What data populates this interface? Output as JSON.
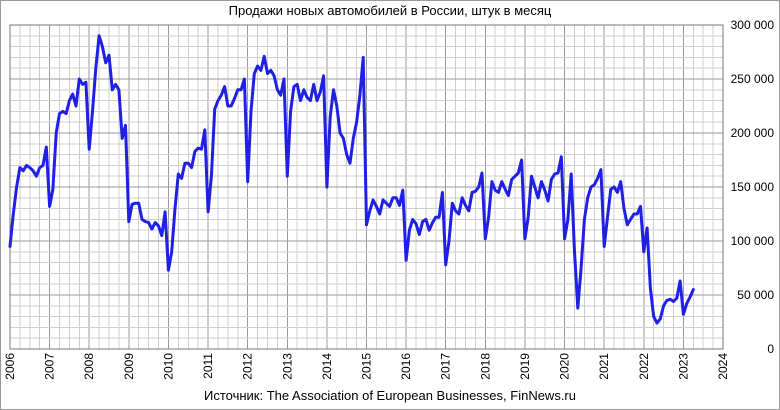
{
  "title": "Продажи новых автомобилей в России, штук в месяц",
  "source": "Источник: The Association of European Businesses, FinNews.ru",
  "colors": {
    "series": "#1f1fe6",
    "grid_minor": "#cfcfcf",
    "grid_major": "#9a9a9a",
    "background": "#ffffff"
  },
  "chart_data": {
    "type": "line",
    "title": "Продажи новых автомобилей в России, штук в месяц",
    "xlabel": "",
    "ylabel": "",
    "xlim": [
      2006,
      2024
    ],
    "ylim": [
      0,
      300000
    ],
    "y_axis_position": "right",
    "grid": true,
    "x_tick_labels": [
      "2006",
      "2007",
      "2008",
      "2009",
      "2010",
      "2011",
      "2012",
      "2013",
      "2014",
      "2015",
      "2016",
      "2017",
      "2018",
      "2019",
      "2020",
      "2021",
      "2022",
      "2023",
      "2024"
    ],
    "y_tick_labels": [
      "0",
      "50 000",
      "100 000",
      "150 000",
      "200 000",
      "250 000",
      "300 000"
    ],
    "y_tick_values": [
      0,
      50000,
      100000,
      150000,
      200000,
      250000,
      300000
    ],
    "series": [
      {
        "x_start": "2006-01",
        "frequency": "monthly",
        "values": [
          95000,
          125000,
          150000,
          168000,
          165000,
          170000,
          168000,
          165000,
          160000,
          168000,
          170000,
          187000,
          132000,
          148000,
          200000,
          218000,
          220000,
          218000,
          230000,
          236000,
          225000,
          250000,
          245000,
          247000,
          185000,
          220000,
          260000,
          290000,
          280000,
          265000,
          272000,
          240000,
          245000,
          240000,
          195000,
          207000,
          118000,
          134000,
          135000,
          135000,
          120000,
          118000,
          117000,
          111000,
          117000,
          114000,
          105000,
          127000,
          73000,
          90000,
          130000,
          162000,
          158000,
          172000,
          172000,
          168000,
          183000,
          186000,
          185000,
          203000,
          127000,
          160000,
          222000,
          230000,
          235000,
          243000,
          225000,
          225000,
          232000,
          240000,
          240000,
          250000,
          155000,
          220000,
          255000,
          262000,
          258000,
          271000,
          255000,
          258000,
          253000,
          240000,
          235000,
          250000,
          160000,
          220000,
          243000,
          245000,
          230000,
          240000,
          233000,
          230000,
          245000,
          230000,
          238000,
          253000,
          150000,
          215000,
          240000,
          225000,
          200000,
          195000,
          180000,
          172000,
          195000,
          210000,
          235000,
          270000,
          115000,
          128000,
          138000,
          132000,
          125000,
          138000,
          135000,
          132000,
          140000,
          140000,
          133000,
          147000,
          82000,
          110000,
          120000,
          116000,
          106000,
          118000,
          120000,
          110000,
          117000,
          122000,
          122000,
          145000,
          78000,
          100000,
          135000,
          128000,
          125000,
          140000,
          133000,
          128000,
          145000,
          146000,
          150000,
          163000,
          102000,
          122000,
          155000,
          147000,
          145000,
          155000,
          148000,
          142000,
          157000,
          160000,
          163000,
          175000,
          102000,
          122000,
          160000,
          150000,
          140000,
          155000,
          147000,
          137000,
          157000,
          162000,
          163000,
          178000,
          102000,
          120000,
          162000,
          90000,
          38000,
          75000,
          120000,
          140000,
          150000,
          152000,
          158000,
          166000,
          95000,
          122000,
          148000,
          150000,
          145000,
          155000,
          130000,
          115000,
          120000,
          125000,
          125000,
          132000,
          90000,
          112000,
          56000,
          30000,
          24000,
          28000,
          40000,
          45000,
          46000,
          44000,
          47000,
          63000,
          32000,
          42000,
          48000,
          55000
        ]
      }
    ]
  }
}
